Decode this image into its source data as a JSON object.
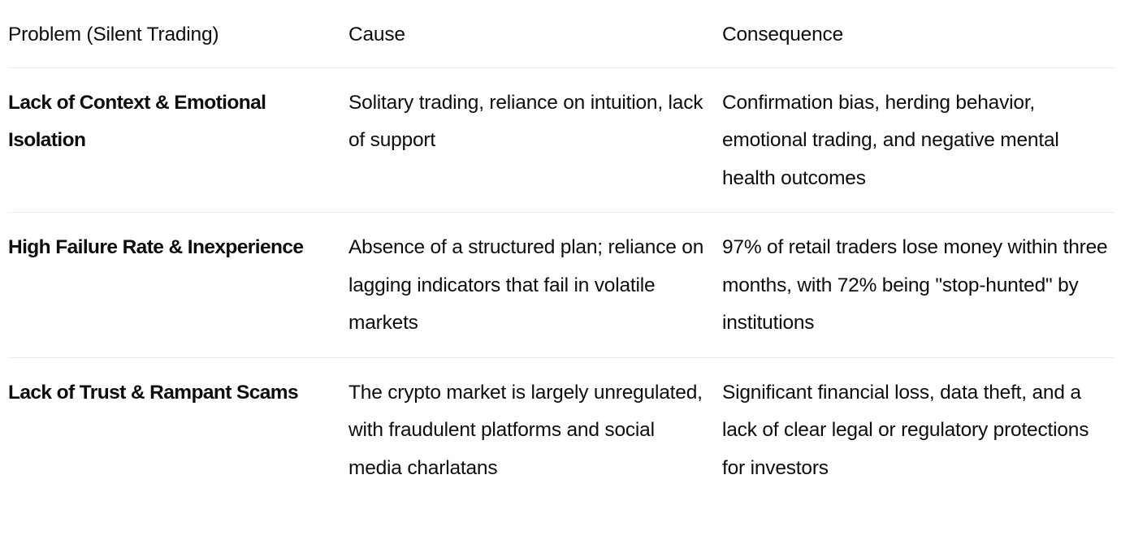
{
  "table": {
    "headers": [
      "Problem (Silent Trading)",
      "Cause",
      "Consequence"
    ],
    "rows": [
      {
        "problem": "Lack of Context & Emotional Isolation",
        "cause": "Solitary trading, reliance on intuition, lack of support",
        "consequence": "Confirmation bias, herding behavior, emotional trading, and negative mental health outcomes"
      },
      {
        "problem": "High Failure Rate & Inexperience",
        "cause": "Absence of a structured plan; reliance on lagging indicators that fail in volatile markets",
        "consequence": "97% of retail traders lose money within three months, with 72% being \"stop-hunted\" by institutions"
      },
      {
        "problem": "Lack of Trust & Rampant Scams",
        "cause": "The crypto market is largely unregulated, with fraudulent platforms and social media charlatans",
        "consequence": "Significant financial loss, data theft, and a lack of clear legal or regulatory protections for investors"
      }
    ]
  }
}
